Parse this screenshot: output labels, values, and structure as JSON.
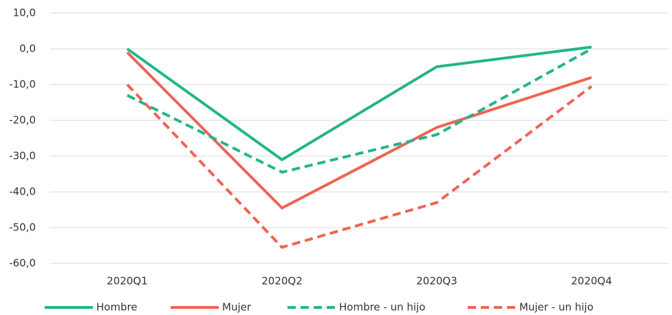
{
  "chart_data": {
    "type": "line",
    "categories": [
      "2020Q1",
      "2020Q2",
      "2020Q3",
      "2020Q4"
    ],
    "series": [
      {
        "name": "Hombre",
        "color": "#22b58a",
        "dashed": false,
        "values": [
          0,
          -31,
          -5,
          0.5
        ]
      },
      {
        "name": "Mujer",
        "color": "#ee6452",
        "dashed": false,
        "values": [
          -1,
          -44.5,
          -22,
          -8
        ]
      },
      {
        "name": "Hombre - un hijo",
        "color": "#22b58a",
        "dashed": true,
        "values": [
          -13,
          -34.5,
          -24,
          0
        ]
      },
      {
        "name": "Mujer - un hijo",
        "color": "#ee6452",
        "dashed": true,
        "values": [
          -10,
          -55.5,
          -43,
          -10.5
        ]
      }
    ],
    "ylim": [
      -60,
      10
    ],
    "yticks": [
      {
        "value": 10,
        "label": "10,0"
      },
      {
        "value": 0,
        "label": "0,0"
      },
      {
        "value": -10,
        "label": "-10,0"
      },
      {
        "value": -20,
        "label": "-20,0"
      },
      {
        "value": -30,
        "label": "-30,0"
      },
      {
        "value": -40,
        "label": "-40,0"
      },
      {
        "value": -50,
        "label": "-50,0"
      },
      {
        "value": -60,
        "label": "-60,0"
      }
    ],
    "grid": true,
    "legend": "bottom"
  }
}
